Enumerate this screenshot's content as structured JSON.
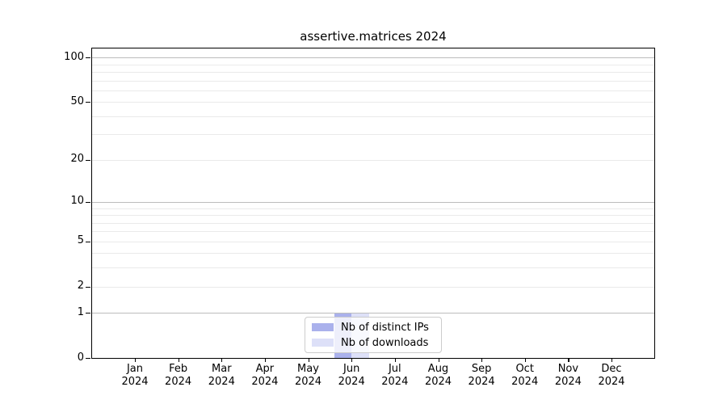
{
  "chart_data": {
    "type": "bar",
    "title": "assertive.matrices 2024",
    "categories": [
      "Jan",
      "Feb",
      "Mar",
      "Apr",
      "May",
      "Jun",
      "Jul",
      "Aug",
      "Sep",
      "Oct",
      "Nov",
      "Dec"
    ],
    "year_label": "2024",
    "series": [
      {
        "name": "Nb of distinct IPs",
        "color": "#aab1ec",
        "values": [
          0,
          0,
          0,
          0,
          0,
          1,
          0,
          0,
          0,
          0,
          0,
          0
        ]
      },
      {
        "name": "Nb of downloads",
        "color": "#dde0f8",
        "values": [
          0,
          0,
          0,
          0,
          0,
          1,
          0,
          0,
          0,
          0,
          0,
          0
        ]
      }
    ],
    "y_axis": {
      "scale": "log10(1+x)",
      "ylim": [
        0,
        115
      ],
      "tick_values": [
        100,
        50,
        20,
        10,
        5,
        2,
        1,
        0
      ],
      "major_gridlines": [
        100,
        10,
        1
      ],
      "minor_gridlines": [
        90,
        80,
        70,
        60,
        50,
        40,
        30,
        20,
        9,
        8,
        7,
        6,
        5,
        4,
        3,
        2
      ]
    },
    "legend_position": "bottom-center",
    "grid": true
  },
  "style_colors": {
    "spine": "#000000",
    "major_grid": "#bdbdbd",
    "minor_grid": "#eaeaea",
    "legend_border": "#cccccc",
    "text": "#000000"
  }
}
